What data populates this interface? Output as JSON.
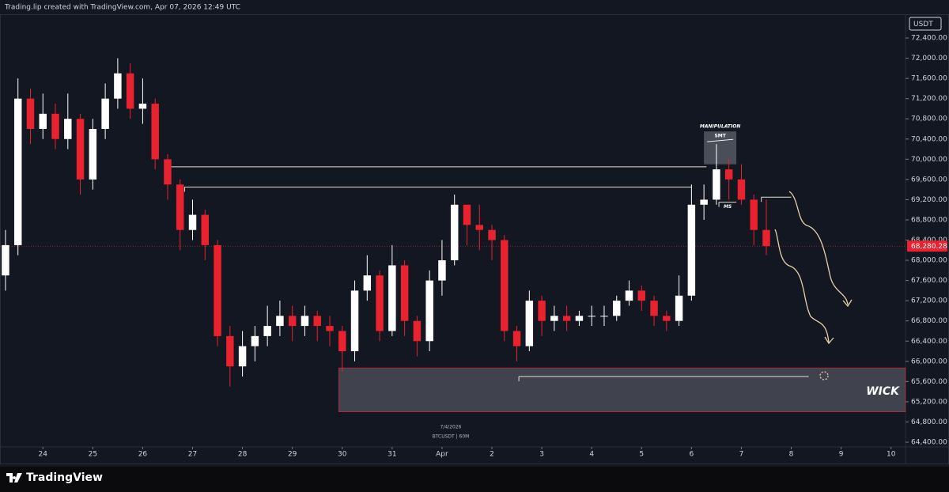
{
  "header": {
    "text": "Trading.lip created with TradingView.com, Apr 07, 2026 12:49 UTC"
  },
  "toolbar": {
    "currency": "USDT"
  },
  "footer": {
    "logo": "TradingView"
  },
  "chart_data": {
    "type": "candlestick",
    "watermark": {
      "date": "7/4/2026",
      "symbol": "BTCUSDT | 60M"
    },
    "x": [
      -0.75,
      -0.5,
      -0.25,
      0,
      0.25,
      0.5,
      0.75,
      1,
      1.25,
      1.5,
      1.75,
      2,
      2.25,
      2.5,
      2.75,
      3,
      3.25,
      3.5,
      3.75,
      4,
      4.25,
      4.5,
      4.75,
      5,
      5.25,
      5.5,
      5.75,
      6,
      6.25,
      6.5,
      6.75,
      7,
      7.25,
      7.5,
      7.75,
      8,
      8.25,
      8.5,
      8.75,
      9,
      9.25,
      9.5,
      9.75,
      10,
      10.25,
      10.5,
      10.75,
      11,
      11.25,
      11.5,
      11.75,
      12,
      12.25,
      12.5,
      12.75,
      13,
      13.25,
      13.5,
      13.75,
      14,
      14.25,
      14.5
    ],
    "open": [
      67700,
      68300,
      71200,
      70600,
      70900,
      70400,
      70800,
      69600,
      70600,
      71200,
      71700,
      71000,
      71100,
      70000,
      69500,
      68600,
      68900,
      68300,
      66500,
      65900,
      66300,
      66500,
      66700,
      66900,
      66700,
      66900,
      66700,
      66600,
      66200,
      67400,
      67700,
      66600,
      67900,
      66800,
      66400,
      67600,
      68000,
      69100,
      68700,
      68600,
      68400,
      66600,
      66300,
      67200,
      66800,
      66900,
      66800,
      66900,
      66900,
      66900,
      67200,
      67400,
      67200,
      66900,
      66800,
      67300,
      69100,
      69200,
      69800,
      69600,
      69200,
      68600
    ],
    "high": [
      68600,
      71600,
      71400,
      71300,
      71100,
      71300,
      70900,
      70800,
      71500,
      72000,
      71900,
      71600,
      71200,
      70100,
      69600,
      69200,
      69000,
      68400,
      66700,
      66600,
      66700,
      67100,
      67200,
      67100,
      67100,
      67000,
      66900,
      66700,
      67600,
      68100,
      67800,
      68300,
      68000,
      66900,
      67800,
      68400,
      69300,
      69100,
      69100,
      68700,
      68500,
      66700,
      67400,
      67300,
      67100,
      67100,
      67000,
      67100,
      67100,
      67300,
      67600,
      67500,
      67300,
      67000,
      67700,
      69500,
      69500,
      70300,
      70000,
      69900,
      69300,
      69200
    ],
    "low": [
      67400,
      68100,
      70300,
      70400,
      70200,
      70200,
      69300,
      69400,
      70400,
      71000,
      70800,
      70700,
      69800,
      69200,
      68200,
      68400,
      68000,
      66300,
      65500,
      65700,
      66000,
      66300,
      66500,
      66400,
      66500,
      66400,
      66300,
      65800,
      66000,
      67200,
      66400,
      66500,
      66500,
      66100,
      66200,
      67300,
      67900,
      68300,
      68200,
      68000,
      66400,
      66000,
      66200,
      66500,
      66600,
      66600,
      66700,
      66700,
      66700,
      66800,
      67100,
      67000,
      66700,
      66600,
      66700,
      67200,
      68800,
      69100,
      69200,
      69100,
      68300,
      68100
    ],
    "close": [
      68300,
      71200,
      70600,
      70900,
      70400,
      70800,
      69600,
      70600,
      71200,
      71700,
      71000,
      71100,
      70000,
      69500,
      68600,
      68900,
      68300,
      66500,
      65900,
      66300,
      66500,
      66700,
      66900,
      66700,
      66900,
      66700,
      66600,
      66200,
      67400,
      67700,
      66600,
      67900,
      66800,
      66400,
      67600,
      68000,
      69100,
      68700,
      68600,
      68400,
      66600,
      66300,
      67200,
      66800,
      66900,
      66800,
      66900,
      66900,
      66900,
      67200,
      67400,
      67200,
      66900,
      66800,
      67300,
      69100,
      69200,
      69800,
      69600,
      69200,
      68600,
      68280.28
    ],
    "colors": {
      "up": "#ffffff",
      "down": "#e8222e"
    },
    "xlim": [
      -0.86,
      17.29
    ],
    "ylim": [
      64306,
      73152
    ],
    "xticks": [
      {
        "value": 0,
        "label": "24"
      },
      {
        "value": 1,
        "label": "25"
      },
      {
        "value": 2,
        "label": "26"
      },
      {
        "value": 3,
        "label": "27"
      },
      {
        "value": 4,
        "label": "28"
      },
      {
        "value": 5,
        "label": "29"
      },
      {
        "value": 6,
        "label": "30"
      },
      {
        "value": 7,
        "label": "31"
      },
      {
        "value": 8,
        "label": "Apr"
      },
      {
        "value": 9,
        "label": "2"
      },
      {
        "value": 10,
        "label": "3"
      },
      {
        "value": 11,
        "label": "4"
      },
      {
        "value": 12,
        "label": "5"
      },
      {
        "value": 13,
        "label": "6"
      },
      {
        "value": 14,
        "label": "7"
      },
      {
        "value": 15,
        "label": "8"
      },
      {
        "value": 16,
        "label": "9"
      },
      {
        "value": 17,
        "label": "10"
      }
    ],
    "yticks": [
      {
        "value": 64400,
        "label": "64,400.00"
      },
      {
        "value": 64800,
        "label": "64,800.00"
      },
      {
        "value": 65200,
        "label": "65,200.00"
      },
      {
        "value": 65600,
        "label": "65,600.00"
      },
      {
        "value": 66000,
        "label": "66,000.00"
      },
      {
        "value": 66400,
        "label": "66,400.00"
      },
      {
        "value": 66800,
        "label": "66,800.00"
      },
      {
        "value": 67200,
        "label": "67,200.00"
      },
      {
        "value": 67600,
        "label": "67,600.00"
      },
      {
        "value": 68000,
        "label": "68,000.00"
      },
      {
        "value": 68400,
        "label": "68,400.00"
      },
      {
        "value": 68800,
        "label": "68,800.00"
      },
      {
        "value": 69200,
        "label": "69,200.00"
      },
      {
        "value": 69600,
        "label": "69,600.00"
      },
      {
        "value": 70000,
        "label": "70,000.00"
      },
      {
        "value": 70400,
        "label": "70,400.00"
      },
      {
        "value": 70800,
        "label": "70,800.00"
      },
      {
        "value": 71200,
        "label": "71,200.00"
      },
      {
        "value": 71600,
        "label": "71,600.00"
      },
      {
        "value": 72000,
        "label": "72,000.00"
      },
      {
        "value": 72400,
        "label": "72,400.00"
      }
    ],
    "last_price": {
      "value": 68280.28,
      "label": "68,280.28"
    },
    "zones": [
      {
        "label": "WICK",
        "y": [
          65000,
          65870
        ],
        "x": [
          5.93,
          17.29
        ]
      }
    ],
    "rays": [
      {
        "y": 69850,
        "x": [
          2.55,
          13.3
        ]
      },
      {
        "y": 69450,
        "x": [
          2.84,
          13.0
        ]
      },
      {
        "y": 65700,
        "x": [
          9.54,
          15.35
        ]
      },
      {
        "y": 69150,
        "x": [
          13.55,
          13.9
        ],
        "label": "MS"
      },
      {
        "y": 69250,
        "x": [
          14.4,
          15.0
        ]
      }
    ],
    "boxes": [
      {
        "label": "MANIPULATION",
        "sublabel": "SMT",
        "y": [
          69900,
          70550
        ],
        "x": [
          13.25,
          13.9
        ]
      }
    ]
  }
}
